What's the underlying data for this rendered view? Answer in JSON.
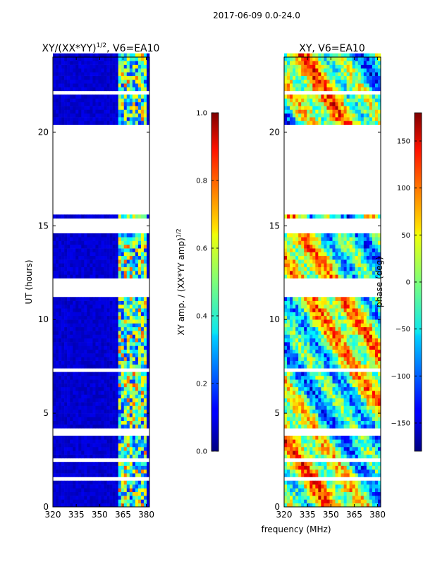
{
  "suptitle": "2017-06-09 0.0-24.0",
  "shared_xlabel": "frequency (MHz)",
  "chart_data": [
    {
      "type": "heatmap",
      "title": "XY/(XX*YY)",
      "title_exponent": "1/2",
      "title_suffix": ", V6=EA10",
      "xlabel": "",
      "ylabel": "UT (hours)",
      "xlim": [
        320,
        382
      ],
      "ylim": [
        0,
        24
      ],
      "xticks": [
        320,
        335,
        350,
        365,
        380
      ],
      "yticks": [
        0,
        5,
        10,
        15,
        20
      ],
      "colormap": "jet",
      "colorbar": {
        "label": "XY amp. / (XX*YY amp)",
        "label_exponent": "1/2",
        "range": [
          0.0,
          1.0
        ],
        "ticks": [
          "0.0",
          "0.2",
          "0.4",
          "0.6",
          "0.8",
          "1.0"
        ],
        "tick_values": [
          0.0,
          0.2,
          0.4,
          0.6,
          0.8,
          1.0
        ]
      },
      "data_gaps_hours": [
        [
          0.4,
          0.5
        ],
        [
          1.5,
          1.6
        ],
        [
          2.5,
          2.6
        ],
        [
          3.8,
          4.2
        ],
        [
          7.2,
          7.4
        ],
        [
          10.3,
          10.4
        ],
        [
          11.2,
          12.1
        ],
        [
          14.5,
          15.4
        ],
        [
          15.6,
          20.3
        ],
        [
          22.0,
          22.2
        ]
      ],
      "colors": {
        "background": "#00008f",
        "bright": "#40e0ff",
        "hot": "#ffe020"
      }
    },
    {
      "type": "heatmap",
      "title": "XY, V6=EA10",
      "xlabel": "",
      "ylabel": "",
      "xlim": [
        320,
        382
      ],
      "ylim": [
        0,
        24
      ],
      "xticks": [
        320,
        335,
        350,
        365,
        380
      ],
      "yticks": [
        0,
        5,
        10,
        15,
        20
      ],
      "colormap": "jet",
      "colorbar": {
        "label": "phase (deg)",
        "range": [
          -180,
          180
        ],
        "ticks": [
          "−150",
          "−100",
          "−50",
          "0",
          "50",
          "100",
          "150"
        ],
        "tick_values": [
          -150,
          -100,
          -50,
          0,
          50,
          100,
          150
        ]
      },
      "data_gaps_hours": [
        [
          0.4,
          0.5
        ],
        [
          1.5,
          1.6
        ],
        [
          2.5,
          2.6
        ],
        [
          3.8,
          4.2
        ],
        [
          7.2,
          7.4
        ],
        [
          10.3,
          10.4
        ],
        [
          11.2,
          12.1
        ],
        [
          14.5,
          15.4
        ],
        [
          15.6,
          20.3
        ],
        [
          22.0,
          22.2
        ]
      ]
    }
  ]
}
